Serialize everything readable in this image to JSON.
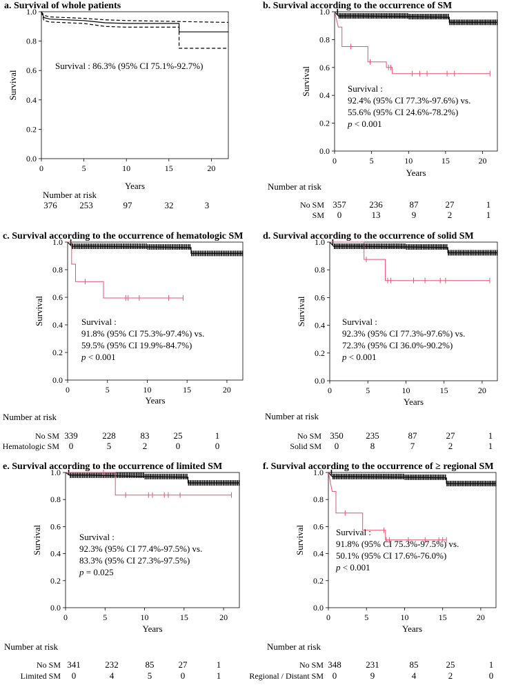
{
  "panels": [
    {
      "id": "a",
      "title": "a. Survival of whole patients",
      "ylabel": "Survival",
      "xlabel": "Years",
      "risk_header": "Number at risk",
      "annotation": [
        "Survival : 86.3% (95% CI 75.1%-92.7%)"
      ],
      "risk_rows": [
        {
          "label": "",
          "values": [
            "376",
            "253",
            "97",
            "32",
            "3"
          ]
        }
      ]
    },
    {
      "id": "b",
      "title": "b. Survival according to the occurrence of SM",
      "ylabel": "Survival",
      "xlabel": "Years",
      "risk_header": "Number at risk",
      "annotation": [
        "Survival :",
        "92.4% (95% CI 77.3%-97.6%) vs.",
        "55.6% (95% CI 24.6%-78.2%)",
        "p < 0.001"
      ],
      "risk_rows": [
        {
          "label": "No SM",
          "values": [
            "357",
            "236",
            "87",
            "27",
            "1"
          ]
        },
        {
          "label": "SM",
          "values": [
            "0",
            "13",
            "9",
            "2",
            "1"
          ]
        }
      ]
    },
    {
      "id": "c",
      "title": "c. Survival according to the occurrence of hematologic SM",
      "ylabel": "Survival",
      "xlabel": "Years",
      "risk_header": "Number at risk",
      "annotation": [
        "Survival :",
        "91.8% (95% CI 75.3%-97.4%) vs.",
        "59.5% (95% CI 19.9%-84.7%)",
        "p < 0.001"
      ],
      "risk_rows": [
        {
          "label": "No SM",
          "values": [
            "339",
            "228",
            "83",
            "25",
            "1"
          ]
        },
        {
          "label": "Hematologic SM",
          "values": [
            "0",
            "5",
            "2",
            "0",
            "0"
          ]
        }
      ]
    },
    {
      "id": "d",
      "title": "d. Survival according to the occurrence of solid SM",
      "ylabel": "Survival",
      "xlabel": "Years",
      "risk_header": "Number at risk",
      "annotation": [
        "Survival :",
        "92.3% (95% CI 77.3%-97.6%) vs.",
        "72.3% (95% CI 36.0%-90.2%)",
        "p < 0.001"
      ],
      "risk_rows": [
        {
          "label": "No SM",
          "values": [
            "350",
            "235",
            "87",
            "27",
            "1"
          ]
        },
        {
          "label": "Solid SM",
          "values": [
            "0",
            "8",
            "7",
            "2",
            "1"
          ]
        }
      ]
    },
    {
      "id": "e",
      "title": "e. Survival according to the occurrence of limited SM",
      "ylabel": "Survival",
      "xlabel": "Years",
      "risk_header": "Number at risk",
      "annotation": [
        "Survival :",
        "92.3% (95% CI 77.4%-97.5%) vs.",
        "83.3% (95% CI 27.3%-97.5%)",
        "p = 0.025"
      ],
      "risk_rows": [
        {
          "label": "No SM",
          "values": [
            "341",
            "232",
            "85",
            "27",
            "1"
          ]
        },
        {
          "label": "Limited SM",
          "values": [
            "0",
            "4",
            "5",
            "0",
            "1"
          ]
        }
      ]
    },
    {
      "id": "f",
      "title": "f. Survival according to the occurrence of ≥ regional SM",
      "ylabel": "Survival",
      "xlabel": "Years",
      "risk_header": "Number at risk",
      "annotation": [
        "Survival :",
        "91.8% (95% CI 75.3%-97.5%) vs.",
        "50.1% (95% CI 17.6%-76.0%)",
        "p < 0.001"
      ],
      "risk_rows": [
        {
          "label": "No SM",
          "values": [
            "348",
            "231",
            "85",
            "25",
            "1"
          ]
        },
        {
          "label": "Regional / Distant SM",
          "values": [
            "0",
            "9",
            "4",
            "2",
            "0"
          ]
        }
      ]
    }
  ],
  "colors": {
    "main_curve": "#000000",
    "sm_curve": "#e8506e"
  },
  "chart_data": [
    {
      "type": "line",
      "title": "a. Survival of whole patients",
      "xlabel": "Years",
      "ylabel": "Survival",
      "xlim": [
        0,
        22
      ],
      "ylim": [
        0,
        1
      ],
      "x_ticks": [
        0,
        5,
        10,
        15,
        20
      ],
      "y_ticks": [
        0.0,
        0.2,
        0.4,
        0.6,
        0.8,
        1.0
      ],
      "series": [
        {
          "role": "estimate",
          "points": [
            [
              0,
              1.0
            ],
            [
              0.3,
              0.96
            ],
            [
              1,
              0.95
            ],
            [
              5,
              0.94
            ],
            [
              7.5,
              0.925
            ],
            [
              10,
              0.92
            ],
            [
              16.2,
              0.92
            ],
            [
              16.2,
              0.863
            ],
            [
              22,
              0.863
            ]
          ]
        },
        {
          "role": "upper-ci",
          "points": [
            [
              0,
              1.0
            ],
            [
              0.3,
              0.975
            ],
            [
              1,
              0.965
            ],
            [
              5,
              0.955
            ],
            [
              7.5,
              0.945
            ],
            [
              10,
              0.94
            ],
            [
              22,
              0.927
            ]
          ]
        },
        {
          "role": "lower-ci",
          "points": [
            [
              0,
              1.0
            ],
            [
              0.3,
              0.94
            ],
            [
              1,
              0.93
            ],
            [
              5,
              0.92
            ],
            [
              7.5,
              0.9
            ],
            [
              10,
              0.895
            ],
            [
              16.2,
              0.895
            ],
            [
              16.2,
              0.751
            ],
            [
              22,
              0.751
            ]
          ]
        }
      ]
    },
    {
      "type": "line",
      "title": "b. Survival according to the occurrence of SM",
      "xlabel": "Years",
      "ylabel": "Survival",
      "xlim": [
        0,
        22
      ],
      "ylim": [
        0,
        1
      ],
      "x_ticks": [
        0,
        5,
        10,
        15,
        20
      ],
      "y_ticks": [
        0.0,
        0.2,
        0.4,
        0.6,
        0.8,
        1.0
      ],
      "series": [
        {
          "role": "No SM",
          "points": [
            [
              0,
              1.0
            ],
            [
              0.5,
              0.97
            ],
            [
              3,
              0.97
            ],
            [
              10,
              0.965
            ],
            [
              15.5,
              0.96
            ],
            [
              15.5,
              0.924
            ],
            [
              22,
              0.924
            ]
          ]
        },
        {
          "role": "SM",
          "points": [
            [
              0,
              1.0
            ],
            [
              0.5,
              0.89
            ],
            [
              1,
              0.89
            ],
            [
              1,
              0.75
            ],
            [
              4.5,
              0.75
            ],
            [
              4.5,
              0.64
            ],
            [
              7,
              0.64
            ],
            [
              7,
              0.6
            ],
            [
              7.8,
              0.6
            ],
            [
              7.8,
              0.556
            ],
            [
              21,
              0.556
            ]
          ],
          "censor_x": [
            2.2,
            4.8,
            7.3,
            7.6,
            10.5,
            11.5,
            12.5,
            15.2,
            16.2,
            21
          ]
        }
      ]
    },
    {
      "type": "line",
      "title": "c. Survival according to the occurrence of hematologic SM",
      "xlabel": "Years",
      "ylabel": "Survival",
      "xlim": [
        0,
        22
      ],
      "ylim": [
        0,
        1
      ],
      "x_ticks": [
        0,
        5,
        10,
        15,
        20
      ],
      "y_ticks": [
        0.0,
        0.2,
        0.4,
        0.6,
        0.8,
        1.0
      ],
      "series": [
        {
          "role": "No SM",
          "points": [
            [
              0,
              1.0
            ],
            [
              0.5,
              0.97
            ],
            [
              3,
              0.97
            ],
            [
              10,
              0.965
            ],
            [
              15.5,
              0.96
            ],
            [
              15.5,
              0.918
            ],
            [
              22,
              0.918
            ]
          ]
        },
        {
          "role": "SM",
          "points": [
            [
              0,
              1.0
            ],
            [
              0.5,
              1.0
            ],
            [
              0.5,
              0.84
            ],
            [
              1,
              0.84
            ],
            [
              1,
              0.714
            ],
            [
              4.5,
              0.714
            ],
            [
              4.5,
              0.595
            ],
            [
              14.5,
              0.595
            ]
          ],
          "censor_x": [
            2.2,
            7.3,
            7.6,
            9,
            12.7,
            14.5
          ]
        }
      ]
    },
    {
      "type": "line",
      "title": "d. Survival according to the occurrence of solid SM",
      "xlabel": "Years",
      "ylabel": "Survival",
      "xlim": [
        0,
        22
      ],
      "ylim": [
        0,
        1
      ],
      "x_ticks": [
        0,
        5,
        10,
        15,
        20
      ],
      "y_ticks": [
        0.0,
        0.2,
        0.4,
        0.6,
        0.8,
        1.0
      ],
      "series": [
        {
          "role": "No SM",
          "points": [
            [
              0,
              1.0
            ],
            [
              0.5,
              0.97
            ],
            [
              3,
              0.97
            ],
            [
              10,
              0.965
            ],
            [
              15.5,
              0.96
            ],
            [
              15.5,
              0.923
            ],
            [
              22,
              0.923
            ]
          ]
        },
        {
          "role": "SM",
          "points": [
            [
              0,
              1.0
            ],
            [
              4.5,
              1.0
            ],
            [
              4.5,
              0.875
            ],
            [
              7.3,
              0.875
            ],
            [
              7.3,
              0.723
            ],
            [
              21,
              0.723
            ]
          ],
          "censor_x": [
            4.8,
            7.6,
            8,
            11,
            12.5,
            14.5,
            15.2,
            21
          ]
        }
      ]
    },
    {
      "type": "line",
      "title": "e. Survival according to the occurrence of limited SM",
      "xlabel": "Years",
      "ylabel": "Survival",
      "xlim": [
        0,
        22
      ],
      "ylim": [
        0,
        1
      ],
      "x_ticks": [
        0,
        5,
        10,
        15,
        20
      ],
      "y_ticks": [
        0.0,
        0.2,
        0.4,
        0.6,
        0.8,
        1.0
      ],
      "series": [
        {
          "role": "No SM",
          "points": [
            [
              0,
              1.0
            ],
            [
              0.5,
              0.98
            ],
            [
              3,
              0.98
            ],
            [
              10,
              0.97
            ],
            [
              15.5,
              0.965
            ],
            [
              15.5,
              0.923
            ],
            [
              22,
              0.923
            ]
          ]
        },
        {
          "role": "SM",
          "points": [
            [
              0,
              1.0
            ],
            [
              6.3,
              1.0
            ],
            [
              6.3,
              0.833
            ],
            [
              21,
              0.833
            ]
          ],
          "censor_x": [
            4.8,
            7.6,
            10.5,
            11,
            12.5,
            13,
            14.5,
            21
          ]
        }
      ]
    },
    {
      "type": "line",
      "title": "f. Survival according to the occurrence of ≥ regional SM",
      "xlabel": "Years",
      "ylabel": "Survival",
      "xlim": [
        0,
        22
      ],
      "ylim": [
        0,
        1
      ],
      "x_ticks": [
        0,
        5,
        10,
        15,
        20
      ],
      "y_ticks": [
        0.0,
        0.2,
        0.4,
        0.6,
        0.8,
        1.0
      ],
      "series": [
        {
          "role": "No SM",
          "points": [
            [
              0,
              1.0
            ],
            [
              0.5,
              0.97
            ],
            [
              3,
              0.97
            ],
            [
              10,
              0.965
            ],
            [
              15.5,
              0.96
            ],
            [
              15.5,
              0.918
            ],
            [
              22,
              0.918
            ]
          ]
        },
        {
          "role": "SM",
          "points": [
            [
              0,
              1.0
            ],
            [
              0.5,
              0.86
            ],
            [
              1,
              0.86
            ],
            [
              1,
              0.7
            ],
            [
              4.5,
              0.7
            ],
            [
              4.5,
              0.573
            ],
            [
              7.5,
              0.573
            ],
            [
              7.5,
              0.501
            ],
            [
              15.5,
              0.501
            ]
          ],
          "censor_x": [
            2.2,
            7.3,
            7.6,
            8,
            10.5,
            12.7,
            14.5,
            15,
            15.5
          ]
        }
      ]
    }
  ]
}
